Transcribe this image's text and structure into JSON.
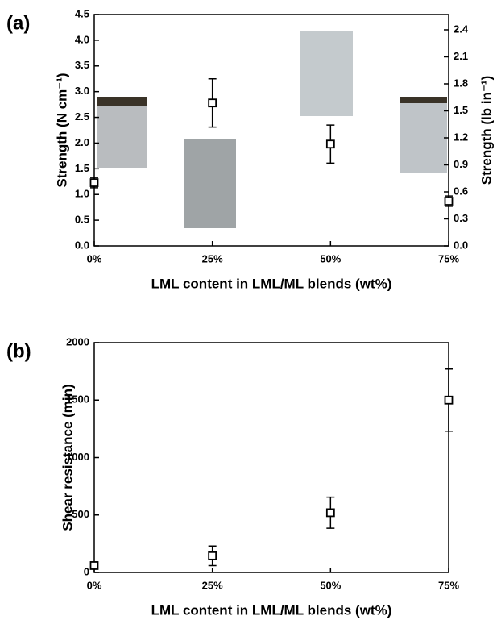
{
  "chart_data": [
    {
      "type": "scatter",
      "panel_label": "(a)",
      "categories": [
        "0%",
        "25%",
        "50%",
        "75%"
      ],
      "series": [
        {
          "color": "#000000",
          "values": [
            1.23,
            2.78,
            1.98,
            0.87
          ],
          "errors": [
            0.1,
            0.47,
            0.37,
            0.1
          ]
        }
      ],
      "x_label": "LML content in LML/ML blends (wt%)",
      "y_label": "Strength (N cm⁻¹)",
      "y2_label": "Strength (lb in⁻¹)",
      "ylim": [
        0,
        4.5
      ],
      "yticks": [
        {
          "value": 0,
          "label": "0.0"
        },
        0.5,
        {
          "value": 1,
          "label": "1.0"
        },
        1.5,
        {
          "value": 2,
          "label": "2.0"
        },
        2.5,
        {
          "value": 3,
          "label": "3.0"
        },
        3.5,
        {
          "value": 4,
          "label": "4.0"
        },
        4.5
      ],
      "y2lim": [
        0,
        2.57
      ],
      "y2ticks": [
        {
          "value": 0,
          "label": "0.0"
        },
        0.3,
        0.6,
        0.9,
        1.2,
        1.5,
        1.8,
        2.1,
        2.4
      ]
    },
    {
      "type": "scatter",
      "panel_label": "(b)",
      "categories": [
        "0%",
        "25%",
        "50%",
        "75%"
      ],
      "series": [
        {
          "color": "#000000",
          "values": [
            60,
            145,
            520,
            1500
          ],
          "errors": [
            20,
            85,
            135,
            270
          ]
        }
      ],
      "x_label": "LML content in LML/ML blends (wt%)",
      "y_label": "Shear resistance (min)",
      "ylim": [
        0,
        2000
      ],
      "yticks": [
        0,
        500,
        1000,
        1500,
        2000
      ]
    }
  ]
}
